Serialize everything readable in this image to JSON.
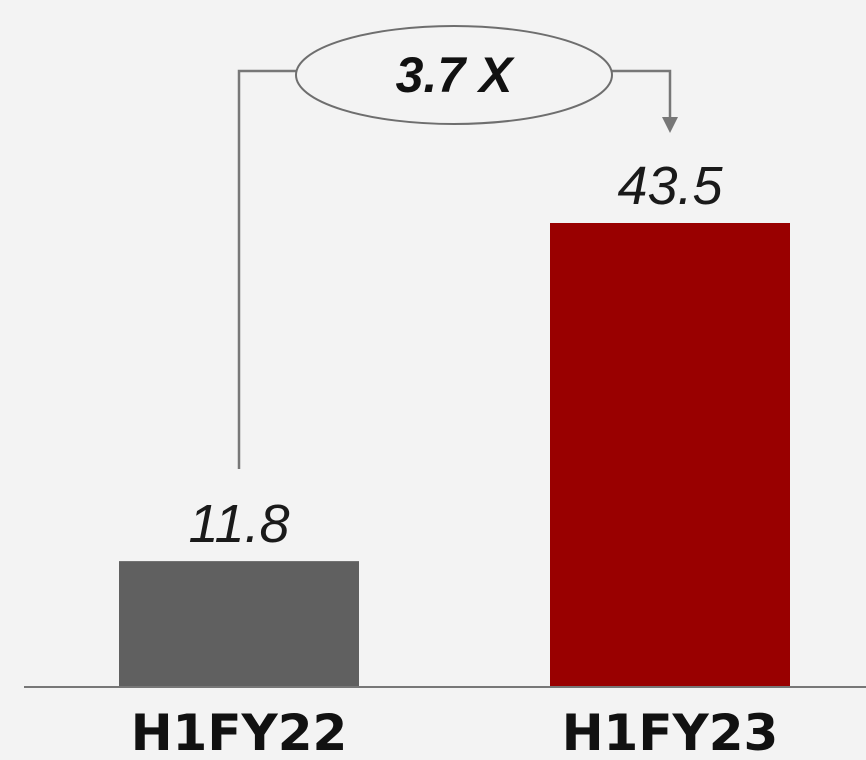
{
  "chart_data": {
    "type": "bar",
    "categories": [
      "H1FY22",
      "H1FY23"
    ],
    "values": [
      11.8,
      43.5
    ],
    "value_labels": [
      "11.8",
      "43.5"
    ],
    "bar_colors": [
      "#606060",
      "#990000"
    ],
    "ylim": [
      0,
      50
    ],
    "grid": false,
    "legend": "none",
    "annotation": {
      "text": "3.7 X",
      "from_category": "H1FY22",
      "to_category": "H1FY23"
    }
  },
  "colors": {
    "background": "#f3f3f3",
    "axis": "#777777",
    "connector": "#777777"
  }
}
